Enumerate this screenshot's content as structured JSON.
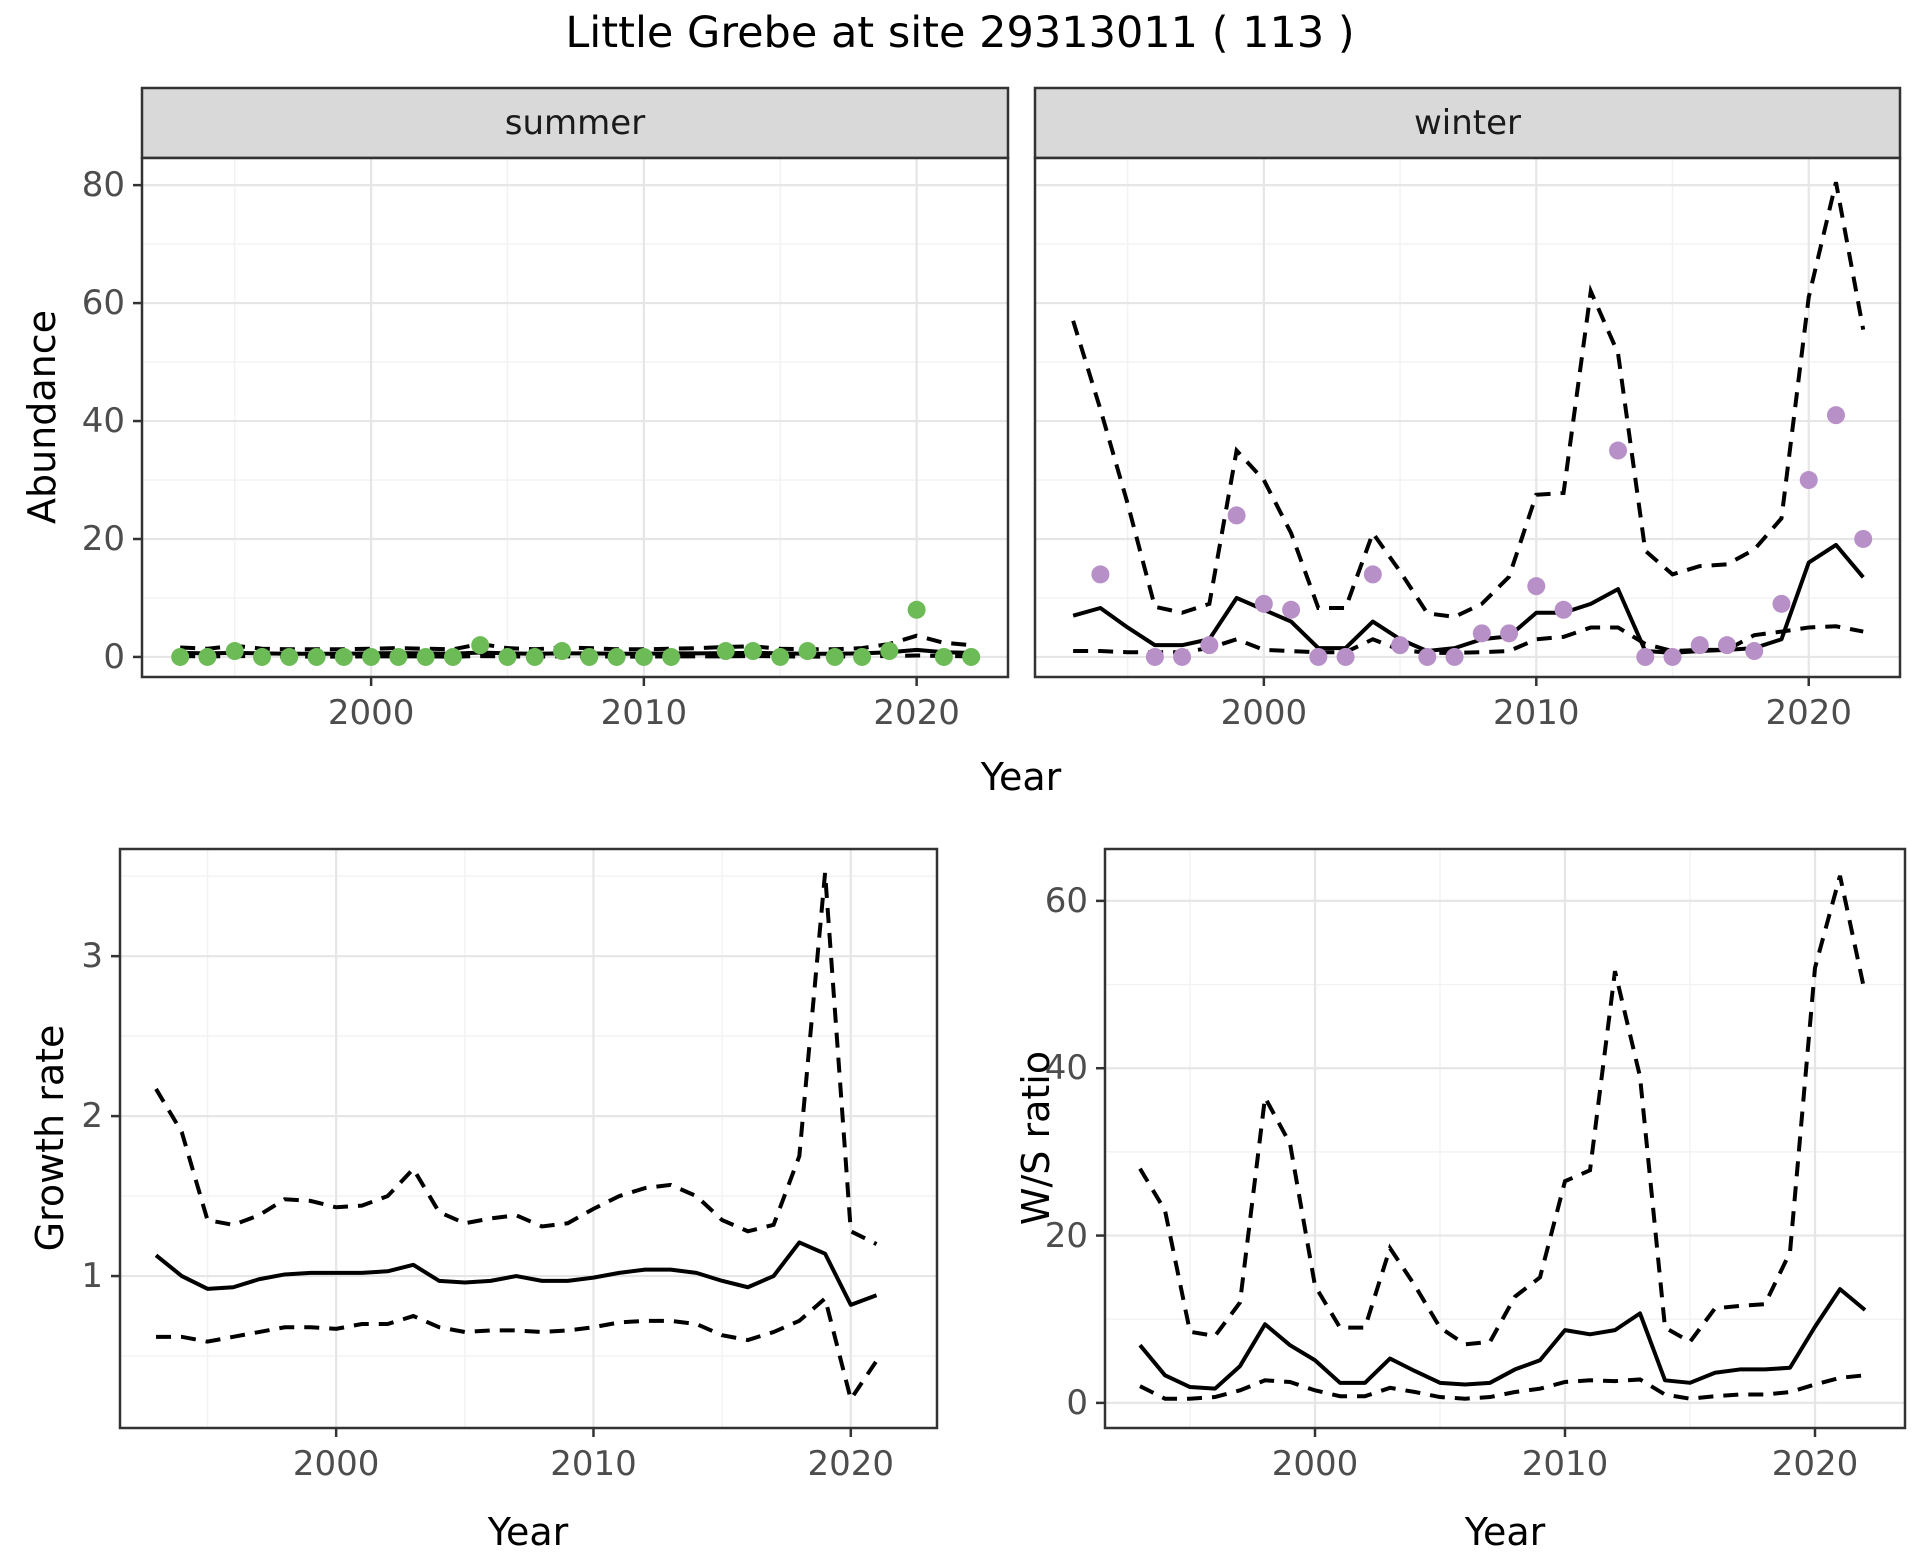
{
  "figure": {
    "title": "Little Grebe at site 29313011 ( 113 )",
    "shared_xlabel": "Year"
  },
  "colors": {
    "summer_point": "#6CBB57",
    "winter_point": "#B890C8",
    "line": "#000000",
    "grid_major": "#E6E6E6",
    "grid_minor": "#F2F2F2",
    "panel_bg": "#FFFFFF",
    "panel_border": "#333333",
    "strip_bg": "#D9D9D9",
    "tick_text": "#4d4d4d"
  },
  "chart_data": [
    {
      "id": "abundance-summer",
      "type": "line",
      "facet_label": "summer",
      "xlabel": "Year",
      "ylabel": "Abundance",
      "xlim": [
        1991.6,
        2023.35
      ],
      "ylim": [
        -3.4,
        84.6
      ],
      "xticks": [
        2000,
        2010,
        2020
      ],
      "xticks_minor": [
        1995,
        2005,
        2015
      ],
      "yticks": [
        0,
        20,
        40,
        60,
        80
      ],
      "yticks_minor": [
        10,
        30,
        50,
        70
      ],
      "years": [
        1993,
        1994,
        1995,
        1996,
        1997,
        1998,
        1999,
        2000,
        2001,
        2002,
        2003,
        2004,
        2005,
        2006,
        2007,
        2008,
        2009,
        2010,
        2011,
        2012,
        2013,
        2014,
        2015,
        2016,
        2017,
        2018,
        2019,
        2020,
        2021,
        2022
      ],
      "fit": [
        0.7,
        0.6,
        0.7,
        0.6,
        0.55,
        0.55,
        0.55,
        0.6,
        0.65,
        0.6,
        0.55,
        0.75,
        0.6,
        0.55,
        0.6,
        0.6,
        0.55,
        0.55,
        0.6,
        0.6,
        0.65,
        0.7,
        0.6,
        0.55,
        0.55,
        0.6,
        0.8,
        1.2,
        0.8,
        0.7
      ],
      "upper": [
        1.6,
        1.4,
        1.9,
        1.4,
        1.3,
        1.3,
        1.3,
        1.4,
        1.5,
        1.4,
        1.3,
        2.2,
        1.5,
        1.3,
        1.6,
        1.5,
        1.3,
        1.3,
        1.4,
        1.5,
        1.7,
        1.8,
        1.4,
        1.3,
        1.3,
        1.5,
        2.2,
        3.6,
        2.4,
        2.0
      ],
      "lower": [
        0.15,
        0.1,
        0.15,
        0.1,
        0.05,
        0.05,
        0.05,
        0.1,
        0.1,
        0.1,
        0.05,
        0.15,
        0.1,
        0.05,
        0.1,
        0.1,
        0.05,
        0.05,
        0.1,
        0.1,
        0.1,
        0.15,
        0.1,
        0.05,
        0.05,
        0.1,
        0.15,
        0.25,
        0.15,
        0.1
      ],
      "obs_years": [
        1993,
        1994,
        1995,
        1996,
        1997,
        1998,
        1999,
        2000,
        2001,
        2002,
        2003,
        2004,
        2005,
        2006,
        2007,
        2008,
        2009,
        2010,
        2011,
        2013,
        2014,
        2015,
        2016,
        2017,
        2018,
        2019,
        2020,
        2021,
        2022
      ],
      "obs_values": [
        0,
        0,
        1,
        0,
        0,
        0,
        0,
        0,
        0,
        0,
        0,
        2,
        0,
        0,
        1,
        0,
        0,
        0,
        0,
        1,
        1,
        0,
        1,
        0,
        0,
        1,
        8,
        0,
        0
      ],
      "point_color": "#6CBB57"
    },
    {
      "id": "abundance-winter",
      "type": "line",
      "facet_label": "winter",
      "xlabel": "Year",
      "ylabel": "Abundance",
      "xlim": [
        1991.6,
        2023.35
      ],
      "ylim": [
        -3.4,
        84.6
      ],
      "xticks": [
        2000,
        2010,
        2020
      ],
      "xticks_minor": [
        1995,
        2005,
        2015
      ],
      "yticks": [
        0,
        20,
        40,
        60,
        80
      ],
      "yticks_minor": [
        10,
        30,
        50,
        70
      ],
      "years": [
        1993,
        1994,
        1995,
        1996,
        1997,
        1998,
        1999,
        2000,
        2001,
        2002,
        2003,
        2004,
        2005,
        2006,
        2007,
        2008,
        2009,
        2010,
        2011,
        2012,
        2013,
        2014,
        2015,
        2016,
        2017,
        2018,
        2019,
        2020,
        2021,
        2022
      ],
      "fit": [
        7,
        8.3,
        5,
        2,
        2,
        3,
        10,
        8,
        6,
        1.5,
        1.5,
        6,
        3,
        1,
        1.5,
        3,
        3.5,
        7.5,
        7.5,
        9,
        11.5,
        1,
        0.7,
        1,
        1.2,
        1.5,
        3,
        16,
        19,
        13.5
      ],
      "upper": [
        57,
        42,
        26,
        8.5,
        7.5,
        9,
        35,
        30,
        21,
        8.3,
        8.3,
        21,
        14.5,
        7.4,
        6.8,
        9,
        13.6,
        27.5,
        27.8,
        62,
        51.5,
        18,
        14,
        15.4,
        15.7,
        18.2,
        23.5,
        61,
        80.5,
        55.5
      ],
      "lower": [
        1,
        1,
        0.8,
        0.8,
        0.8,
        1.5,
        3,
        1.2,
        1,
        0.8,
        0.8,
        3,
        1.2,
        0.7,
        0.7,
        0.8,
        1,
        3,
        3.4,
        5,
        5,
        2.2,
        1,
        1.2,
        1.2,
        3.7,
        4.3,
        5,
        5.2,
        4.3
      ],
      "obs_years": [
        1994,
        1996,
        1997,
        1998,
        1999,
        2000,
        2001,
        2002,
        2003,
        2004,
        2005,
        2006,
        2007,
        2008,
        2009,
        2010,
        2011,
        2013,
        2014,
        2015,
        2016,
        2017,
        2018,
        2019,
        2020,
        2021,
        2022
      ],
      "obs_values": [
        14,
        0,
        0,
        2,
        24,
        9,
        8,
        0,
        0,
        14,
        2,
        0,
        0,
        4,
        4,
        12,
        8,
        35,
        0,
        0,
        2,
        2,
        1,
        9,
        30,
        41,
        20
      ],
      "point_color": "#B890C8"
    },
    {
      "id": "growth-rate",
      "type": "line",
      "facet_label": "",
      "xlabel": "Year",
      "ylabel": "Growth rate",
      "xlim": [
        1991.6,
        2023.35
      ],
      "ylim": [
        0.05,
        3.67
      ],
      "xticks": [
        2000,
        2010,
        2020
      ],
      "xticks_minor": [
        1995,
        2005,
        2015
      ],
      "yticks": [
        1,
        2,
        3
      ],
      "yticks_minor": [
        0.5,
        1.5,
        2.5,
        3.5
      ],
      "years": [
        1993,
        1994,
        1995,
        1996,
        1997,
        1998,
        1999,
        2000,
        2001,
        2002,
        2003,
        2004,
        2005,
        2006,
        2007,
        2008,
        2009,
        2010,
        2011,
        2012,
        2013,
        2014,
        2015,
        2016,
        2017,
        2018,
        2019,
        2020,
        2021
      ],
      "fit": [
        1.13,
        1.0,
        0.92,
        0.93,
        0.98,
        1.01,
        1.02,
        1.02,
        1.02,
        1.03,
        1.07,
        0.97,
        0.96,
        0.97,
        1.0,
        0.97,
        0.97,
        0.99,
        1.02,
        1.04,
        1.04,
        1.02,
        0.97,
        0.93,
        1.0,
        1.21,
        1.14,
        0.82,
        0.88
      ],
      "upper": [
        2.17,
        1.9,
        1.35,
        1.32,
        1.38,
        1.48,
        1.47,
        1.43,
        1.44,
        1.5,
        1.67,
        1.4,
        1.33,
        1.36,
        1.38,
        1.31,
        1.33,
        1.42,
        1.5,
        1.55,
        1.57,
        1.5,
        1.35,
        1.28,
        1.32,
        1.75,
        3.52,
        1.28,
        1.2
      ],
      "lower": [
        0.62,
        0.62,
        0.59,
        0.62,
        0.65,
        0.68,
        0.68,
        0.67,
        0.7,
        0.7,
        0.75,
        0.68,
        0.65,
        0.66,
        0.66,
        0.65,
        0.66,
        0.68,
        0.71,
        0.72,
        0.72,
        0.7,
        0.63,
        0.6,
        0.65,
        0.72,
        0.86,
        0.23,
        0.47
      ],
      "obs_years": [],
      "obs_values": [],
      "point_color": "#000000"
    },
    {
      "id": "ws-ratio",
      "type": "line",
      "facet_label": "",
      "xlabel": "Year",
      "ylabel": "W/S ratio",
      "xlim": [
        1991.6,
        2023.6
      ],
      "ylim": [
        -3.0,
        66.2
      ],
      "xticks": [
        2000,
        2010,
        2020
      ],
      "xticks_minor": [
        1995,
        2005,
        2015
      ],
      "yticks": [
        0,
        20,
        40,
        60
      ],
      "yticks_minor": [
        10,
        30,
        50
      ],
      "years": [
        1993,
        1994,
        1995,
        1996,
        1997,
        1998,
        1999,
        2000,
        2001,
        2002,
        2003,
        2004,
        2005,
        2006,
        2007,
        2008,
        2009,
        2010,
        2011,
        2012,
        2013,
        2014,
        2015,
        2016,
        2017,
        2018,
        2019,
        2020,
        2021,
        2022
      ],
      "fit": [
        6.9,
        3.3,
        1.9,
        1.7,
        4.4,
        9.4,
        6.9,
        5.1,
        2.4,
        2.4,
        5.3,
        3.8,
        2.4,
        2.2,
        2.4,
        4.0,
        5.1,
        8.7,
        8.2,
        8.7,
        10.7,
        2.7,
        2.4,
        3.6,
        4.0,
        4.0,
        4.2,
        9.1,
        13.6,
        11.1
      ],
      "upper": [
        28,
        23,
        8.5,
        8.0,
        12,
        36.5,
        31,
        14,
        9,
        9,
        18.5,
        14,
        9,
        7,
        7.3,
        12.7,
        15,
        26.5,
        27.8,
        51.6,
        39,
        9,
        7.3,
        11.3,
        11.6,
        11.8,
        18,
        52,
        63,
        49
      ],
      "lower": [
        2.0,
        0.5,
        0.5,
        0.7,
        1.5,
        2.7,
        2.5,
        1.5,
        0.8,
        0.8,
        1.8,
        1.3,
        0.7,
        0.5,
        0.7,
        1.3,
        1.7,
        2.5,
        2.7,
        2.6,
        2.8,
        1.0,
        0.5,
        0.8,
        1.0,
        1.0,
        1.3,
        2.2,
        3.0,
        3.3
      ],
      "obs_years": [],
      "obs_values": [],
      "point_color": "#000000"
    }
  ]
}
